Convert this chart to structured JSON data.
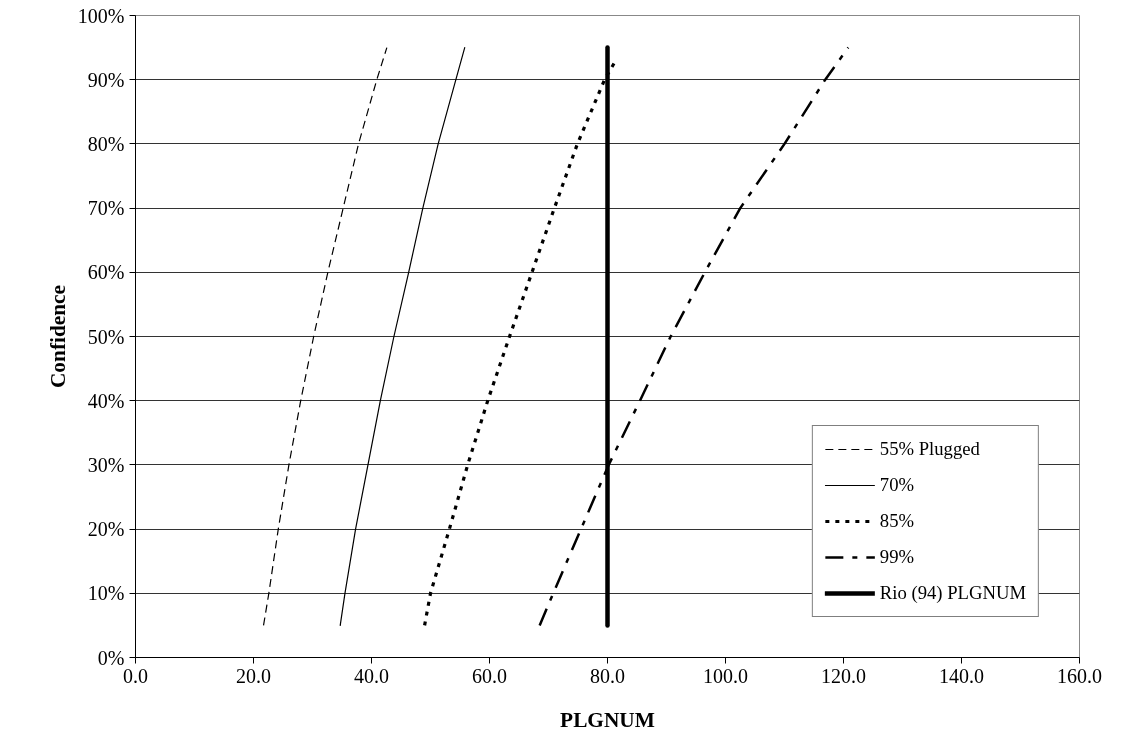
{
  "chart_data": {
    "type": "line",
    "xlabel": "PLGNUM",
    "ylabel": "Confidence",
    "xlim": [
      0,
      160
    ],
    "ylim": [
      0,
      100
    ],
    "xticks": [
      {
        "value": 0,
        "label": "0.0"
      },
      {
        "value": 20,
        "label": "20.0"
      },
      {
        "value": 40,
        "label": "40.0"
      },
      {
        "value": 60,
        "label": "60.0"
      },
      {
        "value": 80,
        "label": "80.0"
      },
      {
        "value": 100,
        "label": "100.0"
      },
      {
        "value": 120,
        "label": "120.0"
      },
      {
        "value": 140,
        "label": "140.0"
      },
      {
        "value": 160,
        "label": "160.0"
      }
    ],
    "yticks": [
      {
        "value": 0,
        "label": "0%"
      },
      {
        "value": 10,
        "label": "10%"
      },
      {
        "value": 20,
        "label": "20%"
      },
      {
        "value": 30,
        "label": "30%"
      },
      {
        "value": 40,
        "label": "40%"
      },
      {
        "value": 50,
        "label": "50%"
      },
      {
        "value": 60,
        "label": "60%"
      },
      {
        "value": 70,
        "label": "70%"
      },
      {
        "value": 80,
        "label": "80%"
      },
      {
        "value": 90,
        "label": "90%"
      },
      {
        "value": 100,
        "label": "100%"
      }
    ],
    "grid": "y",
    "legend": "bottom right",
    "marker": "none",
    "series": [
      {
        "name": "55% Plugged",
        "color": "#000000",
        "line_style": "dashed",
        "x": [
          21.7,
          22.6,
          24.2,
          26.0,
          28.0,
          30.2,
          32.6,
          35.2,
          37.8,
          40.9,
          42.6
        ],
        "values": [
          5,
          10,
          20,
          30,
          40,
          50,
          60,
          70,
          80,
          90,
          95
        ]
      },
      {
        "name": "70%",
        "color": "#000000",
        "line_style": "solid",
        "x": [
          34.7,
          35.5,
          37.3,
          39.4,
          41.5,
          43.8,
          46.3,
          48.7,
          51.3,
          54.3,
          55.8
        ],
        "values": [
          5,
          10,
          20,
          30,
          40,
          50,
          60,
          70,
          80,
          90,
          95
        ]
      },
      {
        "name": "85%",
        "color": "#000000",
        "line_style": "dotted",
        "x": [
          49.0,
          50.0,
          53.2,
          56.3,
          59.7,
          63.4,
          67.2,
          71.0,
          74.9,
          79.5,
          81.4
        ],
        "values": [
          5,
          10,
          20,
          30,
          40,
          50,
          60,
          70,
          80,
          90,
          93
        ]
      },
      {
        "name": "99%",
        "color": "#000000",
        "line_style": "dashdot",
        "x": [
          68.5,
          70.8,
          75.5,
          80.2,
          85.5,
          90.7,
          96.5,
          102.5,
          110.0,
          116.9,
          120.8
        ],
        "values": [
          5,
          10,
          20,
          30,
          40,
          50,
          60,
          70,
          80,
          90,
          95
        ]
      },
      {
        "name": "Rio (94) PLGNUM",
        "color": "#000000",
        "line_style": "solid",
        "x": [
          80,
          80
        ],
        "values": [
          5,
          95
        ]
      }
    ]
  }
}
